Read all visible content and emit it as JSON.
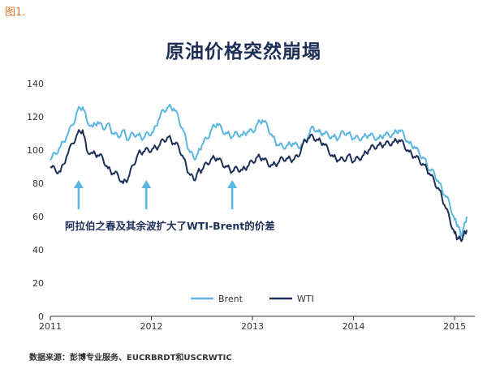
{
  "figure_label": "图1.",
  "source_note": "数据来源：彭博专业服务、EUCRBRDT和USCRWTIC",
  "colors": {
    "brent": "#5bb6e0",
    "wti": "#1d2f57",
    "annotation": "#5bb6e0",
    "title": "#1d2f57",
    "label": "#e0742a"
  },
  "chart_data": {
    "type": "line",
    "title": "原油价格突然崩塌",
    "xlabel": "",
    "ylabel": "",
    "ylim": [
      0,
      140
    ],
    "yticks": [
      0,
      20,
      40,
      60,
      80,
      100,
      120,
      140
    ],
    "xlim": [
      2011.0,
      2015.2
    ],
    "xticks": [
      {
        "value": 2011,
        "label": "2011"
      },
      {
        "value": 2012,
        "label": "2012"
      },
      {
        "value": 2013,
        "label": "2013"
      },
      {
        "value": 2014,
        "label": "2014"
      },
      {
        "value": 2015,
        "label": "2015"
      }
    ],
    "grid": false,
    "legend_position": "bottom-center",
    "annotation": {
      "text": "阿拉伯之春及其余波扩大了WTI-Brent的价差",
      "arrows_at_x": [
        2011.28,
        2011.95,
        2012.8
      ]
    },
    "series": [
      {
        "name": "Brent",
        "x": [
          2011.0,
          2011.05,
          2011.1,
          2011.16,
          2011.22,
          2011.27,
          2011.32,
          2011.36,
          2011.42,
          2011.47,
          2011.52,
          2011.57,
          2011.62,
          2011.67,
          2011.72,
          2011.77,
          2011.82,
          2011.87,
          2011.92,
          2011.97,
          2012.02,
          2012.07,
          2012.12,
          2012.17,
          2012.22,
          2012.27,
          2012.32,
          2012.37,
          2012.42,
          2012.46,
          2012.5,
          2012.55,
          2012.6,
          2012.65,
          2012.7,
          2012.75,
          2012.8,
          2012.85,
          2012.9,
          2012.95,
          2013.0,
          2013.05,
          2013.1,
          2013.15,
          2013.2,
          2013.25,
          2013.3,
          2013.35,
          2013.4,
          2013.45,
          2013.5,
          2013.55,
          2013.6,
          2013.65,
          2013.7,
          2013.75,
          2013.8,
          2013.85,
          2013.9,
          2013.95,
          2014.0,
          2014.05,
          2014.1,
          2014.15,
          2014.2,
          2014.25,
          2014.3,
          2014.35,
          2014.4,
          2014.45,
          2014.5,
          2014.55,
          2014.6,
          2014.65,
          2014.7,
          2014.75,
          2014.8,
          2014.85,
          2014.9,
          2014.95,
          2015.0,
          2015.03,
          2015.06,
          2015.09,
          2015.12
        ],
        "values": [
          94,
          98,
          102,
          108,
          115,
          124,
          126,
          118,
          114,
          117,
          113,
          116,
          110,
          108,
          112,
          106,
          110,
          109,
          107,
          110,
          111,
          118,
          124,
          126,
          125,
          119,
          111,
          100,
          95,
          98,
          103,
          107,
          113,
          116,
          112,
          110,
          108,
          110,
          109,
          111,
          111,
          116,
          118,
          114,
          108,
          103,
          102,
          103,
          104,
          102,
          104,
          108,
          114,
          111,
          110,
          109,
          108,
          107,
          111,
          110,
          107,
          107,
          108,
          109,
          108,
          107,
          109,
          109,
          110,
          112,
          109,
          104,
          102,
          98,
          95,
          88,
          86,
          80,
          73,
          68,
          58,
          55,
          49,
          53,
          60
        ]
      },
      {
        "name": "WTI",
        "x": [
          2011.0,
          2011.05,
          2011.1,
          2011.16,
          2011.22,
          2011.27,
          2011.32,
          2011.36,
          2011.42,
          2011.47,
          2011.52,
          2011.57,
          2011.62,
          2011.67,
          2011.72,
          2011.77,
          2011.82,
          2011.87,
          2011.92,
          2011.97,
          2012.02,
          2012.07,
          2012.12,
          2012.17,
          2012.22,
          2012.27,
          2012.32,
          2012.37,
          2012.42,
          2012.46,
          2012.5,
          2012.55,
          2012.6,
          2012.65,
          2012.7,
          2012.75,
          2012.8,
          2012.85,
          2012.9,
          2012.95,
          2013.0,
          2013.05,
          2013.1,
          2013.15,
          2013.2,
          2013.25,
          2013.3,
          2013.35,
          2013.4,
          2013.45,
          2013.5,
          2013.55,
          2013.6,
          2013.65,
          2013.7,
          2013.75,
          2013.8,
          2013.85,
          2013.9,
          2013.95,
          2014.0,
          2014.05,
          2014.1,
          2014.15,
          2014.2,
          2014.25,
          2014.3,
          2014.35,
          2014.4,
          2014.45,
          2014.5,
          2014.55,
          2014.6,
          2014.65,
          2014.7,
          2014.75,
          2014.8,
          2014.85,
          2014.9,
          2014.95,
          2015.0,
          2015.03,
          2015.06,
          2015.09,
          2015.12
        ],
        "values": [
          90,
          88,
          87,
          96,
          104,
          110,
          112,
          100,
          98,
          97,
          95,
          89,
          86,
          85,
          80,
          83,
          91,
          98,
          99,
          100,
          101,
          102,
          106,
          108,
          104,
          102,
          95,
          86,
          82,
          87,
          88,
          92,
          95,
          95,
          92,
          90,
          87,
          89,
          88,
          90,
          93,
          96,
          95,
          92,
          91,
          92,
          95,
          95,
          94,
          96,
          104,
          107,
          108,
          106,
          104,
          100,
          96,
          94,
          94,
          97,
          93,
          95,
          97,
          100,
          102,
          103,
          103,
          104,
          105,
          106,
          103,
          99,
          96,
          94,
          91,
          86,
          81,
          76,
          67,
          59,
          50,
          47,
          46,
          49,
          52
        ]
      }
    ]
  }
}
